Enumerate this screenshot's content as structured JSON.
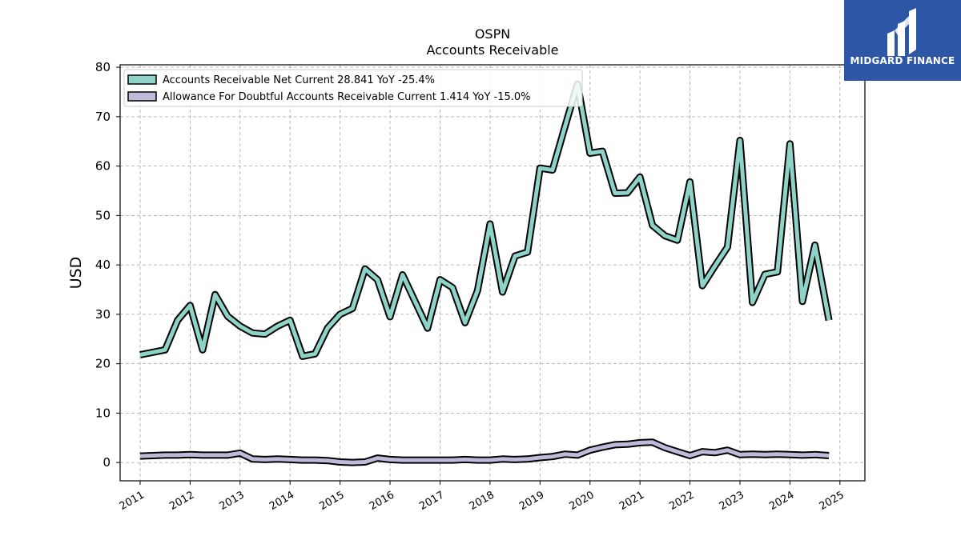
{
  "logo": {
    "text": "MIDGARD FINANCE"
  },
  "chart_data": {
    "type": "line",
    "title": "OSPN",
    "subtitle": "Accounts Receivable",
    "ylabel": "USD",
    "ylim": [
      -3.7,
      80.5
    ],
    "xlim": [
      2010.6,
      2025.5
    ],
    "yticks": [
      0,
      10,
      20,
      30,
      40,
      50,
      60,
      70,
      80
    ],
    "xticks": [
      "2011",
      "2012",
      "2013",
      "2014",
      "2015",
      "2016",
      "2017",
      "2018",
      "2019",
      "2020",
      "2021",
      "2022",
      "2023",
      "2024",
      "2025"
    ],
    "grid": true,
    "legend_position": "top-left",
    "series": [
      {
        "name": "Accounts Receivable Net Current",
        "legend_label": "Accounts Receivable Net Current  28.841 YoY -25.4%",
        "color": "#8dd3c7",
        "x": [
          2011.0,
          2011.5,
          2011.75,
          2012.0,
          2012.25,
          2012.5,
          2012.75,
          2013.0,
          2013.25,
          2013.5,
          2013.75,
          2014.0,
          2014.25,
          2014.5,
          2014.75,
          2015.0,
          2015.25,
          2015.5,
          2015.75,
          2016.0,
          2016.25,
          2016.5,
          2016.75,
          2017.0,
          2017.25,
          2017.5,
          2017.75,
          2018.0,
          2018.25,
          2018.5,
          2018.75,
          2019.0,
          2019.25,
          2019.5,
          2019.75,
          2020.0,
          2020.25,
          2020.5,
          2020.75,
          2021.0,
          2021.25,
          2021.5,
          2021.75,
          2022.0,
          2022.25,
          2022.5,
          2022.75,
          2023.0,
          2023.25,
          2023.5,
          2023.75,
          2024.0,
          2024.25,
          2024.5,
          2024.78
        ],
        "y": [
          21.8,
          22.8,
          28.8,
          31.8,
          22.8,
          34.0,
          29.6,
          27.6,
          26.2,
          26.0,
          27.6,
          28.8,
          21.5,
          22.0,
          27.2,
          30.0,
          31.2,
          39.2,
          37.0,
          29.5,
          38.0,
          32.6,
          27.2,
          37.0,
          35.4,
          28.3,
          34.8,
          48.3,
          34.5,
          41.8,
          42.6,
          59.6,
          59.2,
          68.0,
          76.6,
          62.6,
          63.0,
          54.5,
          54.6,
          57.8,
          48.0,
          45.9,
          45.0,
          56.8,
          35.8,
          39.8,
          43.6,
          65.2,
          32.4,
          38.1,
          38.6,
          64.5,
          32.6,
          44.0,
          28.8
        ]
      },
      {
        "name": "Allowance For Doubtful Accounts Receivable Current",
        "legend_label": "Allowance For Doubtful Accounts Receivable Current  1.414 YoY -15.0%",
        "color": "#bebada",
        "x": [
          2011.0,
          2011.5,
          2011.75,
          2012.0,
          2012.25,
          2012.5,
          2012.75,
          2013.0,
          2013.25,
          2013.5,
          2013.75,
          2014.0,
          2014.25,
          2014.5,
          2014.75,
          2015.0,
          2015.25,
          2015.5,
          2015.75,
          2016.0,
          2016.25,
          2016.5,
          2016.75,
          2017.0,
          2017.25,
          2017.5,
          2017.75,
          2018.0,
          2018.25,
          2018.5,
          2018.75,
          2019.0,
          2019.25,
          2019.5,
          2019.75,
          2020.0,
          2020.25,
          2020.5,
          2020.75,
          2021.0,
          2021.25,
          2021.5,
          2021.75,
          2022.0,
          2022.25,
          2022.5,
          2022.75,
          2023.0,
          2023.25,
          2023.5,
          2023.75,
          2024.0,
          2024.25,
          2024.5,
          2024.78
        ],
        "y": [
          1.3,
          1.5,
          1.5,
          1.6,
          1.5,
          1.5,
          1.5,
          1.9,
          0.7,
          0.6,
          0.7,
          0.6,
          0.5,
          0.5,
          0.4,
          0.1,
          0.0,
          0.1,
          0.9,
          0.6,
          0.5,
          0.5,
          0.5,
          0.5,
          0.5,
          0.6,
          0.5,
          0.5,
          0.7,
          0.6,
          0.7,
          1.0,
          1.2,
          1.7,
          1.5,
          2.5,
          3.1,
          3.6,
          3.7,
          4.0,
          4.1,
          3.0,
          2.2,
          1.4,
          2.2,
          2.0,
          2.5,
          1.6,
          1.7,
          1.6,
          1.7,
          1.6,
          1.5,
          1.6,
          1.4
        ]
      }
    ]
  }
}
